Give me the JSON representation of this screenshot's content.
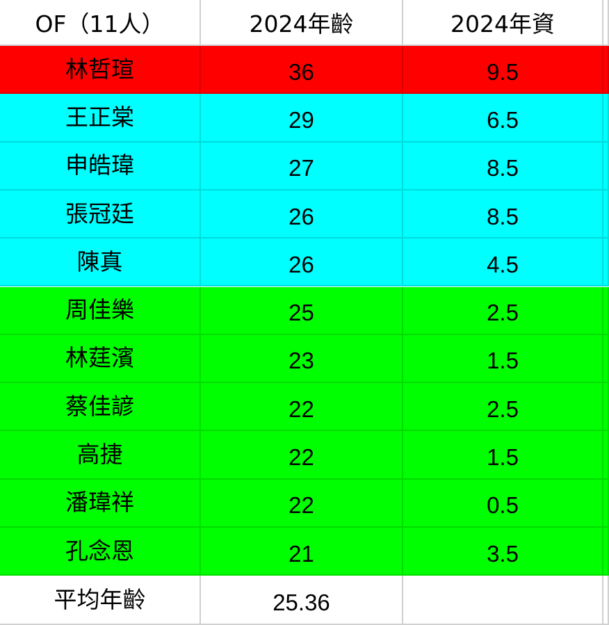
{
  "table": {
    "header": [
      "OF（11人）",
      "2024年齡",
      "2024年資"
    ],
    "rows": [
      {
        "cells": [
          "林哲瑄",
          "36",
          "9.5"
        ],
        "color": "#ff0000"
      },
      {
        "cells": [
          "王正棠",
          "29",
          "6.5"
        ],
        "color": "#00ffff"
      },
      {
        "cells": [
          "申皓瑋",
          "27",
          "8.5"
        ],
        "color": "#00ffff"
      },
      {
        "cells": [
          "張冠廷",
          "26",
          "8.5"
        ],
        "color": "#00ffff"
      },
      {
        "cells": [
          "陳真",
          "26",
          "4.5"
        ],
        "color": "#00ffff"
      },
      {
        "cells": [
          "周佳樂",
          "25",
          "2.5"
        ],
        "color": "#00ff00"
      },
      {
        "cells": [
          "林莛濱",
          "23",
          "1.5"
        ],
        "color": "#00ff00"
      },
      {
        "cells": [
          "蔡佳諺",
          "22",
          "2.5"
        ],
        "color": "#00ff00"
      },
      {
        "cells": [
          "高捷",
          "22",
          "1.5"
        ],
        "color": "#00ff00"
      },
      {
        "cells": [
          "潘瑋祥",
          "22",
          "0.5"
        ],
        "color": "#00ff00"
      },
      {
        "cells": [
          "孔念恩",
          "21",
          "3.5"
        ],
        "color": "#00ff00"
      }
    ],
    "footer": [
      "平均年齡",
      "25.36"
    ]
  }
}
